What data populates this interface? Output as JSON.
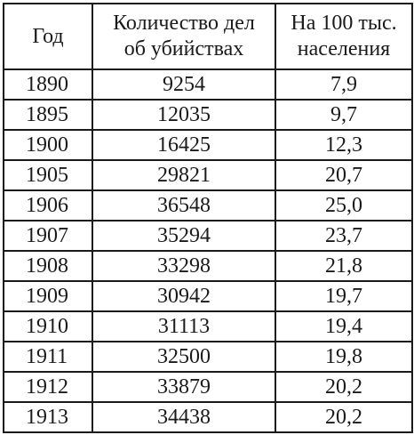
{
  "table": {
    "headers": [
      {
        "lines": [
          "Год"
        ]
      },
      {
        "lines": [
          "Количество дел",
          "об убийствах"
        ]
      },
      {
        "lines": [
          "На 100 тыс.",
          "населения"
        ]
      }
    ],
    "rows": [
      {
        "year": "1890",
        "cases": "9254",
        "per100k": "7,9"
      },
      {
        "year": "1895",
        "cases": "12035",
        "per100k": "9,7"
      },
      {
        "year": "1900",
        "cases": "16425",
        "per100k": "12,3"
      },
      {
        "year": "1905",
        "cases": "29821",
        "per100k": "20,7"
      },
      {
        "year": "1906",
        "cases": "36548",
        "per100k": "25,0"
      },
      {
        "year": "1907",
        "cases": "35294",
        "per100k": "23,7"
      },
      {
        "year": "1908",
        "cases": "33298",
        "per100k": "21,8"
      },
      {
        "year": "1909",
        "cases": "30942",
        "per100k": "19,7"
      },
      {
        "year": "1910",
        "cases": "31113",
        "per100k": "19,4"
      },
      {
        "year": "1911",
        "cases": "32500",
        "per100k": "19,8"
      },
      {
        "year": "1912",
        "cases": "33879",
        "per100k": "20,2"
      },
      {
        "year": "1913",
        "cases": "34438",
        "per100k": "20,2"
      }
    ]
  }
}
